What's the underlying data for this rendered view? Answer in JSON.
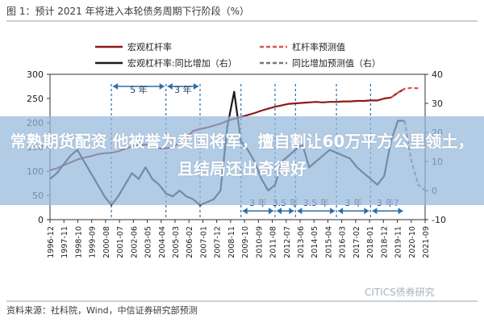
{
  "chart_data": {
    "type": "line",
    "title": "图 1：预计 2021 年将进入本轮债务周期下行阶段（%）",
    "source": "资料来源：社科院，Wind，中信证券研究部预测",
    "x_tick_labels": [
      "1996-12",
      "1997-11",
      "1998-10",
      "1999-09",
      "2000-08",
      "2001-07",
      "2002-06",
      "2003-05",
      "2004-04",
      "2005-03",
      "2006-02",
      "2007-01",
      "2007-12",
      "2008-11",
      "2009-10",
      "2010-09",
      "2011-08",
      "2012-07",
      "2013-06",
      "2014-05",
      "2015-04",
      "2016-03",
      "2017-02",
      "2018-01",
      "2018-12",
      "2019-11",
      "2020-10",
      "2021-09"
    ],
    "y_left_ticks": [
      0,
      50,
      100,
      150,
      200,
      250,
      300
    ],
    "y_right_ticks": [
      -10,
      0,
      10,
      20,
      30,
      40
    ],
    "ylim_left": [
      0,
      300
    ],
    "ylim_right": [
      -10,
      40
    ],
    "legend_position": "top",
    "annotations": [
      "5 年",
      "3 年",
      "3 年",
      "3.5 年",
      "3.5 年",
      "3 年",
      "3 年?"
    ],
    "series": [
      {
        "name": "宏观杠杆率",
        "axis": "left",
        "style": "solid",
        "color": "#8b1a1a",
        "x": [
          0,
          1,
          2,
          3,
          4,
          5,
          6,
          7,
          8,
          9,
          10,
          11,
          12,
          13,
          14,
          15,
          16,
          17,
          18,
          19,
          20,
          21,
          22,
          23,
          24,
          25,
          26,
          27,
          28,
          29,
          30,
          31,
          32,
          33,
          34,
          35,
          36,
          37,
          38,
          39,
          40,
          41,
          42,
          43,
          44,
          45,
          46,
          47,
          48,
          49,
          50,
          51,
          52
        ],
        "values": [
          102,
          106,
          112,
          118,
          124,
          128,
          131,
          135,
          137,
          138,
          141,
          146,
          151,
          154,
          155,
          152,
          147,
          147,
          150,
          158,
          170,
          183,
          187,
          190,
          194,
          198,
          204,
          208,
          212,
          216,
          220,
          225,
          229,
          233,
          236,
          239,
          240,
          241,
          242,
          243,
          242,
          243,
          243,
          244,
          244,
          245,
          245,
          246,
          246,
          250,
          252,
          262,
          270
        ]
      },
      {
        "name": "杠杆率预测值",
        "axis": "left",
        "style": "dashed",
        "color": "#d9534f",
        "x": [
          50,
          51,
          52,
          53,
          54
        ],
        "values": [
          252,
          262,
          270,
          272,
          271
        ]
      },
      {
        "name": "宏观杠杆率:同比增加（右）",
        "axis": "right",
        "style": "solid",
        "color": "#1a1a1a",
        "x": [
          0,
          1,
          2,
          3,
          4,
          5,
          6,
          7,
          8,
          9,
          10,
          11,
          12,
          13,
          14,
          15,
          16,
          17,
          18,
          19,
          20,
          21,
          22,
          23,
          24,
          25,
          26,
          27,
          28,
          29,
          30,
          31,
          32,
          33,
          34,
          35,
          36,
          37,
          38,
          39,
          40,
          41,
          42,
          43,
          44,
          45,
          46,
          47,
          48,
          49,
          50,
          51,
          52
        ],
        "values": [
          4,
          6,
          9,
          12,
          14,
          10,
          6,
          2,
          -2,
          -5,
          -2,
          2,
          6,
          4,
          8,
          4,
          2,
          -1,
          -2,
          0,
          -2,
          -3,
          -5,
          -4,
          -3,
          0,
          22,
          34,
          17,
          14,
          10,
          4,
          0,
          2,
          10,
          12,
          14,
          16,
          8,
          10,
          12,
          14,
          13,
          12,
          11,
          8,
          6,
          4,
          2,
          5,
          17,
          24,
          24
        ]
      },
      {
        "name": "同比增加预测值（右）",
        "axis": "right",
        "style": "dashed",
        "color": "#777777",
        "x": [
          52,
          53,
          54,
          55
        ],
        "values": [
          24,
          10,
          2,
          0
        ]
      }
    ]
  },
  "colors": {
    "levered": "#8b1a1a",
    "forecast": "#d9534f",
    "yoy": "#1a1a1a",
    "yoy_forecast": "#777777",
    "period": "#2e6da4",
    "banner": "#96b9dc"
  },
  "overlay": {
    "banner_text": "常熟期货配资 他被誉为卖国将军，擅自割让60万平方公里领土，且结局还出奇得好",
    "watermark": "CITICS债券研究"
  }
}
